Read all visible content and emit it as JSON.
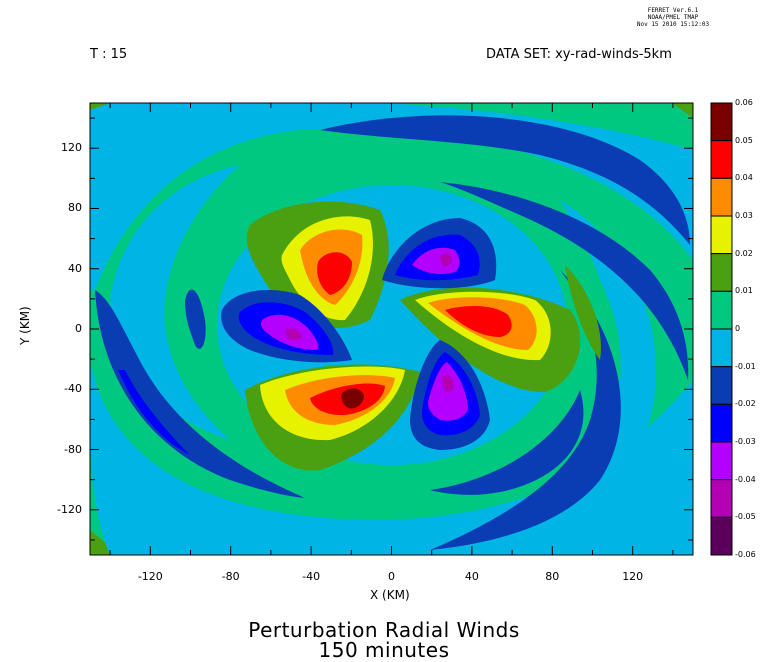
{
  "header": {
    "ferret_line1": "FERRET  Ver.6.1",
    "ferret_line2": "NOAA/PMEL TMAP",
    "ferret_line3": "Nov 15 2010 15:12:03",
    "time_label": "T : 15",
    "dataset_label": "DATA SET: xy-rad-winds-5km"
  },
  "chart_data": {
    "type": "heatmap",
    "title": "Perturbation Radial Winds",
    "subtitle": "150 minutes",
    "xlabel": "X (KM)",
    "ylabel": "Y (KM)",
    "xlim": [
      -150,
      150
    ],
    "ylim": [
      -150,
      150
    ],
    "x_ticks": [
      -120,
      -80,
      -40,
      0,
      40,
      80,
      120
    ],
    "y_ticks": [
      -120,
      -80,
      -40,
      0,
      40,
      80,
      120
    ],
    "x_tick_labels": [
      "-120",
      "-80",
      "-40",
      "0",
      "40",
      "80",
      "120"
    ],
    "y_tick_labels": [
      "-120",
      "-80",
      "-40",
      "0",
      "40",
      "80",
      "120"
    ],
    "colorbar": {
      "levels": [
        0.06,
        0.05,
        0.04,
        0.03,
        0.02,
        0.01,
        0,
        -0.01,
        -0.02,
        -0.03,
        -0.04,
        -0.05,
        -0.06
      ],
      "labels": [
        "0.06",
        "0.05",
        "0.04",
        "0.03",
        "0.02",
        "0.01",
        "0",
        "-0.01",
        "-0.02",
        "-0.03",
        "-0.04",
        "-0.05",
        "-0.06"
      ],
      "colors": [
        "#7a0000",
        "#ff0000",
        "#ff8c00",
        "#e6f200",
        "#4aa010",
        "#00c880",
        "#00b4e6",
        "#0a3cb4",
        "#0000ff",
        "#b400ff",
        "#b400b4",
        "#5a005a"
      ]
    },
    "background_value": 0.005,
    "features": [
      {
        "x": 30,
        "y": 45,
        "value": -0.04,
        "kind": "negative lobe"
      },
      {
        "x": -20,
        "y": 45,
        "value": 0.05,
        "kind": "positive lobe"
      },
      {
        "x": -52,
        "y": -2,
        "value": -0.04,
        "kind": "negative lobe"
      },
      {
        "x": 50,
        "y": 5,
        "value": 0.05,
        "kind": "positive lobe"
      },
      {
        "x": -22,
        "y": -45,
        "value": 0.06,
        "kind": "positive lobe"
      },
      {
        "x": 30,
        "y": -40,
        "value": -0.04,
        "kind": "negative lobe"
      }
    ]
  }
}
